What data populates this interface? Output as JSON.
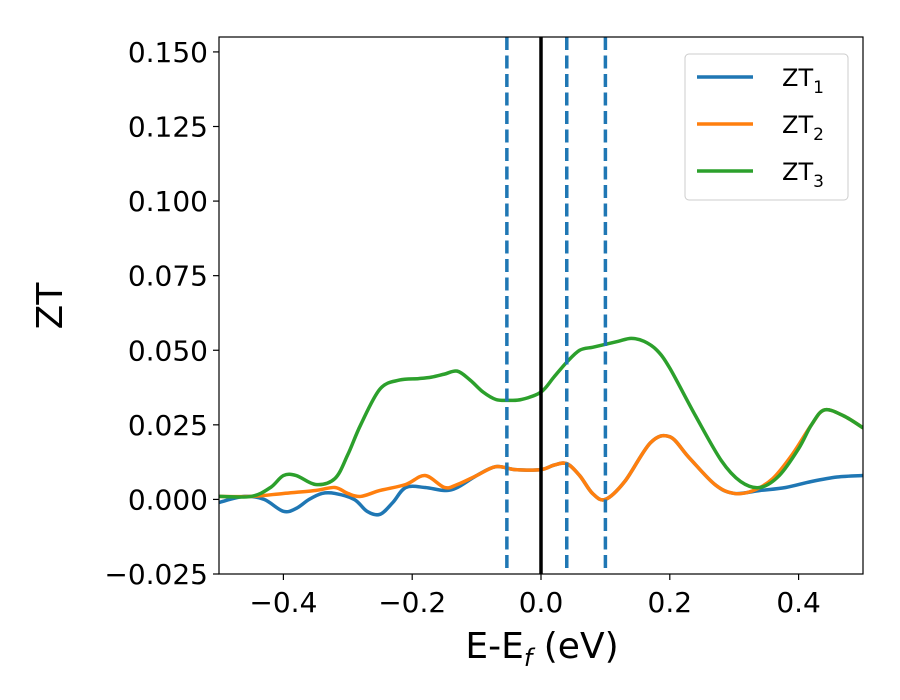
{
  "chart_data": {
    "type": "line",
    "title": "",
    "xlabel": {
      "base": "E-E",
      "sub": "f",
      "unit": " (eV)"
    },
    "ylabel": "ZT",
    "xlim": [
      -0.5,
      0.5
    ],
    "ylim": [
      -0.025,
      0.155
    ],
    "x_ticks": [
      -0.4,
      -0.2,
      0.0,
      0.2,
      0.4
    ],
    "x_tick_labels": [
      "−0.4",
      "−0.2",
      "0.0",
      "0.2",
      "0.4"
    ],
    "y_ticks": [
      -0.025,
      0.0,
      0.025,
      0.05,
      0.075,
      0.1,
      0.125,
      0.15
    ],
    "y_tick_labels": [
      "−0.025",
      "0.000",
      "0.025",
      "0.050",
      "0.075",
      "0.100",
      "0.125",
      "0.150"
    ],
    "grid": false,
    "legend_position": "top-right",
    "series": [
      {
        "name": "ZT",
        "sub": "1",
        "color": "#1f77b4",
        "x": [
          -0.5,
          -0.46,
          -0.43,
          -0.4,
          -0.38,
          -0.36,
          -0.34,
          -0.32,
          -0.29,
          -0.27,
          -0.25,
          -0.23,
          -0.21,
          -0.18,
          -0.15,
          -0.13,
          -0.1,
          -0.07,
          -0.04,
          0.0,
          0.02,
          0.04,
          0.06,
          0.08,
          0.1,
          0.13,
          0.17,
          0.2,
          0.23,
          0.27,
          0.3,
          0.34,
          0.38,
          0.42,
          0.46,
          0.5
        ],
        "y": [
          -0.001,
          0.001,
          0.0,
          -0.004,
          -0.003,
          0.0,
          0.002,
          0.002,
          0.0,
          -0.004,
          -0.005,
          -0.001,
          0.004,
          0.004,
          0.003,
          0.004,
          0.008,
          0.011,
          0.01,
          0.01,
          0.0115,
          0.012,
          0.008,
          0.002,
          0.0,
          0.006,
          0.019,
          0.021,
          0.014,
          0.005,
          0.002,
          0.003,
          0.004,
          0.006,
          0.0075,
          0.008
        ]
      },
      {
        "name": "ZT",
        "sub": "2",
        "color": "#ff7f0e",
        "x": [
          -0.5,
          -0.45,
          -0.4,
          -0.35,
          -0.32,
          -0.3,
          -0.28,
          -0.25,
          -0.21,
          -0.18,
          -0.15,
          -0.13,
          -0.1,
          -0.07,
          -0.04,
          0.0,
          0.02,
          0.04,
          0.06,
          0.08,
          0.1,
          0.13,
          0.17,
          0.2,
          0.23,
          0.27,
          0.3,
          0.33,
          0.36,
          0.39,
          0.42,
          0.44,
          0.47,
          0.5
        ],
        "y": [
          0.001,
          0.001,
          0.002,
          0.003,
          0.004,
          0.002,
          0.001,
          0.003,
          0.005,
          0.008,
          0.004,
          0.005,
          0.008,
          0.011,
          0.01,
          0.01,
          0.0115,
          0.012,
          0.008,
          0.002,
          0.0,
          0.006,
          0.019,
          0.021,
          0.014,
          0.005,
          0.002,
          0.003,
          0.007,
          0.015,
          0.025,
          0.03,
          0.028,
          0.024
        ]
      },
      {
        "name": "ZT",
        "sub": "3",
        "color": "#2ca02c",
        "x": [
          -0.5,
          -0.45,
          -0.42,
          -0.4,
          -0.38,
          -0.35,
          -0.32,
          -0.3,
          -0.28,
          -0.25,
          -0.22,
          -0.19,
          -0.17,
          -0.15,
          -0.13,
          -0.11,
          -0.09,
          -0.07,
          -0.05,
          -0.03,
          0.0,
          0.02,
          0.04,
          0.06,
          0.08,
          0.1,
          0.12,
          0.14,
          0.16,
          0.18,
          0.2,
          0.24,
          0.28,
          0.31,
          0.34,
          0.37,
          0.4,
          0.42,
          0.44,
          0.47,
          0.5
        ],
        "y": [
          0.001,
          0.001,
          0.004,
          0.008,
          0.008,
          0.005,
          0.007,
          0.015,
          0.025,
          0.037,
          0.04,
          0.0405,
          0.041,
          0.042,
          0.043,
          0.04,
          0.036,
          0.0335,
          0.0332,
          0.0335,
          0.036,
          0.041,
          0.046,
          0.05,
          0.051,
          0.052,
          0.053,
          0.054,
          0.053,
          0.05,
          0.044,
          0.028,
          0.013,
          0.006,
          0.004,
          0.008,
          0.017,
          0.025,
          0.03,
          0.028,
          0.024
        ]
      }
    ],
    "vlines": [
      {
        "x": 0.0,
        "style": "solid",
        "color": "#000000"
      },
      {
        "x": -0.053,
        "style": "dashed",
        "color": "#1f77b4"
      },
      {
        "x": 0.04,
        "style": "dashed",
        "color": "#1f77b4"
      },
      {
        "x": 0.1,
        "style": "dashed",
        "color": "#1f77b4"
      }
    ]
  }
}
